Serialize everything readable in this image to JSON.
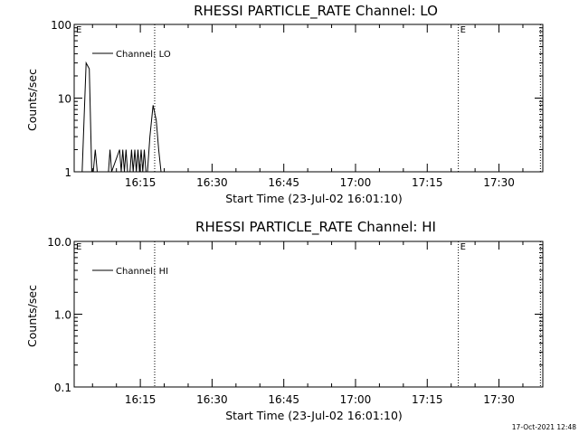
{
  "timestamp": "17-Oct-2021 12:48",
  "chart_data": [
    {
      "type": "line",
      "title": "RHESSI PARTICLE_RATE Channel: LO",
      "xlabel": "Start Time (23-Jul-02 16:01:10)",
      "ylabel": "Counts/sec",
      "y_scale": "log",
      "ylim": [
        1,
        100
      ],
      "y_ticks": [
        "1",
        "10",
        "100"
      ],
      "x_ticks": [
        "16:15",
        "16:30",
        "16:45",
        "17:00",
        "17:15",
        "17:30"
      ],
      "xlim": [
        "16:01:10",
        "17:39:10"
      ],
      "grid": false,
      "legend": "upper-left",
      "vlines": [
        {
          "x": "16:18:00",
          "label": ""
        },
        {
          "x": "17:21:30",
          "label": "E"
        },
        {
          "x": "17:38:40",
          "label": ""
        }
      ],
      "corner_label": "E",
      "series": [
        {
          "name": "Channel: LO",
          "x": [
            "16:02:50",
            "16:03:40",
            "16:04:20",
            "16:04:50",
            "16:05:10",
            "16:05:35",
            "16:06:00",
            "16:06:20",
            "16:06:45",
            "16:07:10",
            "16:08:20",
            "16:08:40",
            "16:09:00",
            "16:10:40",
            "16:11:00",
            "16:11:20",
            "16:11:40",
            "16:12:00",
            "16:12:20",
            "16:12:50",
            "16:13:10",
            "16:13:30",
            "16:13:50",
            "16:14:10",
            "16:14:30",
            "16:14:50",
            "16:15:10",
            "16:15:30",
            "16:15:50",
            "16:16:10",
            "16:16:30",
            "16:17:00",
            "16:17:40",
            "16:18:20",
            "16:18:50",
            "16:19:20",
            "16:20:00",
            "16:20:20"
          ],
          "values": [
            1,
            30,
            25,
            1,
            1,
            2,
            1,
            1,
            1,
            1,
            1,
            2,
            1,
            2,
            1,
            2,
            1,
            2,
            1,
            1,
            2,
            1,
            2,
            1,
            2,
            1,
            2,
            1,
            2,
            1,
            1,
            3,
            8,
            5,
            2,
            1,
            1,
            1
          ]
        }
      ]
    },
    {
      "type": "line",
      "title": "RHESSI PARTICLE_RATE Channel: HI",
      "xlabel": "Start Time (23-Jul-02 16:01:10)",
      "ylabel": "Counts/sec",
      "y_scale": "log",
      "ylim": [
        0.1,
        10
      ],
      "y_ticks": [
        "0.1",
        "1.0",
        "10.0"
      ],
      "x_ticks": [
        "16:15",
        "16:30",
        "16:45",
        "17:00",
        "17:15",
        "17:30"
      ],
      "xlim": [
        "16:01:10",
        "17:39:10"
      ],
      "grid": false,
      "legend": "upper-left",
      "vlines": [
        {
          "x": "16:18:00",
          "label": ""
        },
        {
          "x": "17:21:30",
          "label": "E"
        },
        {
          "x": "17:38:40",
          "label": ""
        }
      ],
      "corner_label": "E",
      "series": [
        {
          "name": "Channel: HI",
          "x": [],
          "values": []
        }
      ]
    }
  ]
}
